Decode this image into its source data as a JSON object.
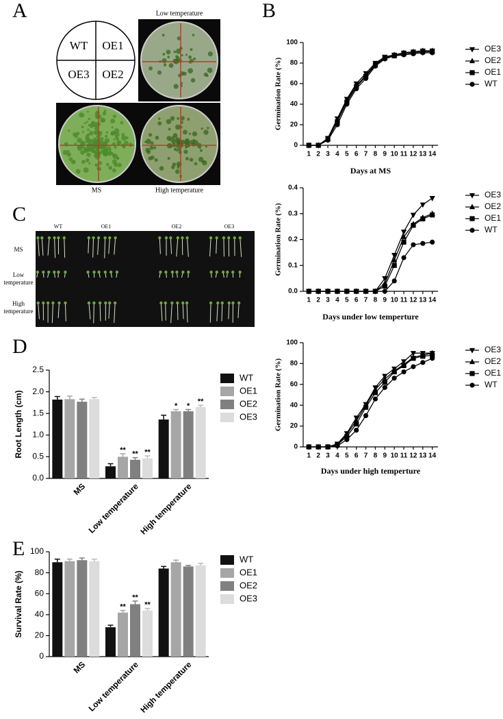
{
  "panel_labels": [
    "A",
    "B",
    "C",
    "D",
    "E"
  ],
  "panel_a": {
    "quadrants": [
      "WT",
      "OE1",
      "OE3",
      "OE2"
    ],
    "plates": [
      "Low temperature",
      "MS",
      "High temperature"
    ]
  },
  "panel_c": {
    "columns": [
      "WT",
      "OE1",
      "OE2",
      "OE3"
    ],
    "rows": [
      "MS",
      "Low temperature",
      "High temperature"
    ]
  },
  "chart_data": [
    {
      "type": "line",
      "x_label": "Days at MS",
      "y_label": "Germination Rate (%)",
      "x": [
        1,
        2,
        3,
        4,
        5,
        6,
        7,
        8,
        9,
        10,
        11,
        12,
        13,
        14
      ],
      "xlim": [
        0.4,
        14.6
      ],
      "xticks": [
        1,
        2,
        3,
        4,
        5,
        6,
        7,
        8,
        9,
        10,
        11,
        12,
        13,
        14
      ],
      "ylim": [
        0,
        100
      ],
      "yticks": [
        0,
        20,
        40,
        60,
        80,
        100
      ],
      "series": [
        {
          "name": "OE3",
          "color": "#000000",
          "marker": "triangle-down",
          "values": [
            0,
            0,
            7,
            26,
            45,
            60,
            70,
            80,
            86,
            88,
            90,
            91,
            92,
            92
          ]
        },
        {
          "name": "OE2",
          "color": "#000000",
          "marker": "triangle-up",
          "values": [
            0,
            0,
            6,
            25,
            44,
            58,
            68,
            79,
            85,
            88,
            90,
            91,
            92,
            92
          ]
        },
        {
          "name": "OE1",
          "color": "#000000",
          "marker": "square",
          "values": [
            0,
            0,
            6,
            23,
            42,
            57,
            67,
            78,
            85,
            87,
            89,
            90,
            91,
            91
          ]
        },
        {
          "name": "WT",
          "color": "#000000",
          "marker": "circle",
          "values": [
            0,
            0,
            5,
            20,
            40,
            55,
            65,
            77,
            84,
            87,
            88,
            89,
            90,
            90
          ]
        }
      ]
    },
    {
      "type": "line",
      "x_label": "Days under  low temperture",
      "y_label": "Germination Rate (%)",
      "x": [
        1,
        2,
        3,
        4,
        5,
        6,
        7,
        8,
        9,
        10,
        11,
        12,
        13,
        14
      ],
      "xlim": [
        0.4,
        14.6
      ],
      "xticks": [
        1,
        2,
        3,
        4,
        5,
        6,
        7,
        8,
        9,
        10,
        11,
        12,
        13,
        14
      ],
      "ylim": [
        0,
        0.4
      ],
      "yticks": [
        {
          "value": 0,
          "label": "0.0"
        },
        0.1,
        0.2,
        0.3,
        0.4
      ],
      "series": [
        {
          "name": "OE3",
          "color": "#000000",
          "marker": "triangle-down",
          "values": [
            0,
            0,
            0,
            0,
            0,
            0,
            0,
            0,
            0.05,
            0.14,
            0.23,
            0.295,
            0.335,
            0.36
          ]
        },
        {
          "name": "OE2",
          "color": "#000000",
          "marker": "triangle-up",
          "values": [
            0,
            0,
            0,
            0,
            0,
            0,
            0,
            0,
            0.03,
            0.12,
            0.21,
            0.26,
            0.285,
            0.3
          ]
        },
        {
          "name": "OE1",
          "color": "#000000",
          "marker": "square",
          "values": [
            0,
            0,
            0,
            0,
            0,
            0,
            0,
            0,
            0.02,
            0.1,
            0.19,
            0.255,
            0.28,
            0.295
          ]
        },
        {
          "name": "WT",
          "color": "#000000",
          "marker": "circle",
          "values": [
            0,
            0,
            0,
            0,
            0,
            0,
            0,
            0,
            0,
            0.04,
            0.13,
            0.18,
            0.185,
            0.19
          ]
        }
      ]
    },
    {
      "type": "line",
      "x_label": "Days under  high temperture",
      "y_label": "Germination Rate (%)",
      "x": [
        1,
        2,
        3,
        4,
        5,
        6,
        7,
        8,
        9,
        10,
        11,
        12,
        13,
        14
      ],
      "xlim": [
        0.4,
        14.6
      ],
      "xticks": [
        1,
        2,
        3,
        4,
        5,
        6,
        7,
        8,
        9,
        10,
        11,
        12,
        13,
        14
      ],
      "ylim": [
        0,
        100
      ],
      "yticks": [
        0,
        20,
        40,
        60,
        80,
        100
      ],
      "series": [
        {
          "name": "OE3",
          "color": "#000000",
          "marker": "triangle-down",
          "values": [
            0,
            0,
            0,
            3,
            13,
            28,
            41,
            57,
            68,
            75,
            82,
            90,
            90,
            90
          ]
        },
        {
          "name": "OE2",
          "color": "#000000",
          "marker": "triangle-up",
          "values": [
            0,
            0,
            0,
            2,
            12,
            25,
            40,
            55,
            65,
            73,
            79,
            86,
            88,
            90
          ]
        },
        {
          "name": "OE1",
          "color": "#000000",
          "marker": "square",
          "values": [
            0,
            0,
            0,
            2,
            10,
            22,
            38,
            52,
            62,
            72,
            78,
            85,
            87,
            88
          ]
        },
        {
          "name": "WT",
          "color": "#000000",
          "marker": "circle",
          "values": [
            0,
            0,
            0,
            1,
            7,
            16,
            30,
            46,
            57,
            66,
            72,
            77,
            81,
            85
          ]
        }
      ]
    },
    {
      "type": "bar",
      "y_label": "Root Length (cm)",
      "categories": [
        "MS",
        "Low temperature",
        "High temperature"
      ],
      "ylim": [
        0,
        2.5
      ],
      "yticks": [
        {
          "value": 0,
          "label": "0.0"
        },
        0.5,
        {
          "value": 1,
          "label": "1.0"
        },
        1.5,
        {
          "value": 2,
          "label": "2.0"
        },
        2.5
      ],
      "series": [
        {
          "name": "WT",
          "color": "#111111",
          "values": [
            1.82,
            0.28,
            1.36
          ],
          "errors": [
            0.07,
            0.06,
            0.1
          ],
          "significance": [
            null,
            null,
            null
          ]
        },
        {
          "name": "OE1",
          "color": "#a6a6a6",
          "values": [
            1.83,
            0.5,
            1.55
          ],
          "errors": [
            0.07,
            0.07,
            0.04
          ],
          "significance": [
            null,
            "**",
            "*"
          ]
        },
        {
          "name": "OE2",
          "color": "#808080",
          "values": [
            1.77,
            0.43,
            1.55
          ],
          "errors": [
            0.06,
            0.05,
            0.04
          ],
          "significance": [
            null,
            "**",
            "*"
          ]
        },
        {
          "name": "OE3",
          "color": "#dcdcdc",
          "values": [
            1.83,
            0.46,
            1.65
          ],
          "errors": [
            0.04,
            0.06,
            0.04
          ],
          "significance": [
            null,
            "**",
            "**"
          ]
        }
      ]
    },
    {
      "type": "bar",
      "y_label": "Survival Rate (%)",
      "categories": [
        "MS",
        "Low temperature",
        "High temperature"
      ],
      "ylim": [
        0,
        100
      ],
      "yticks": [
        0,
        20,
        40,
        60,
        80,
        100
      ],
      "series": [
        {
          "name": "WT",
          "color": "#111111",
          "values": [
            90,
            28,
            84
          ],
          "errors": [
            3,
            2,
            2
          ],
          "significance": [
            null,
            null,
            null
          ]
        },
        {
          "name": "OE1",
          "color": "#a6a6a6",
          "values": [
            91,
            42,
            90
          ],
          "errors": [
            2,
            2,
            2
          ],
          "significance": [
            null,
            "**",
            null
          ]
        },
        {
          "name": "OE2",
          "color": "#808080",
          "values": [
            92,
            50,
            86
          ],
          "errors": [
            2,
            3,
            1
          ],
          "significance": [
            null,
            "**",
            null
          ]
        },
        {
          "name": "OE3",
          "color": "#dcdcdc",
          "values": [
            91,
            44,
            87
          ],
          "errors": [
            2,
            2,
            2
          ],
          "significance": [
            null,
            "**",
            null
          ]
        }
      ]
    }
  ]
}
